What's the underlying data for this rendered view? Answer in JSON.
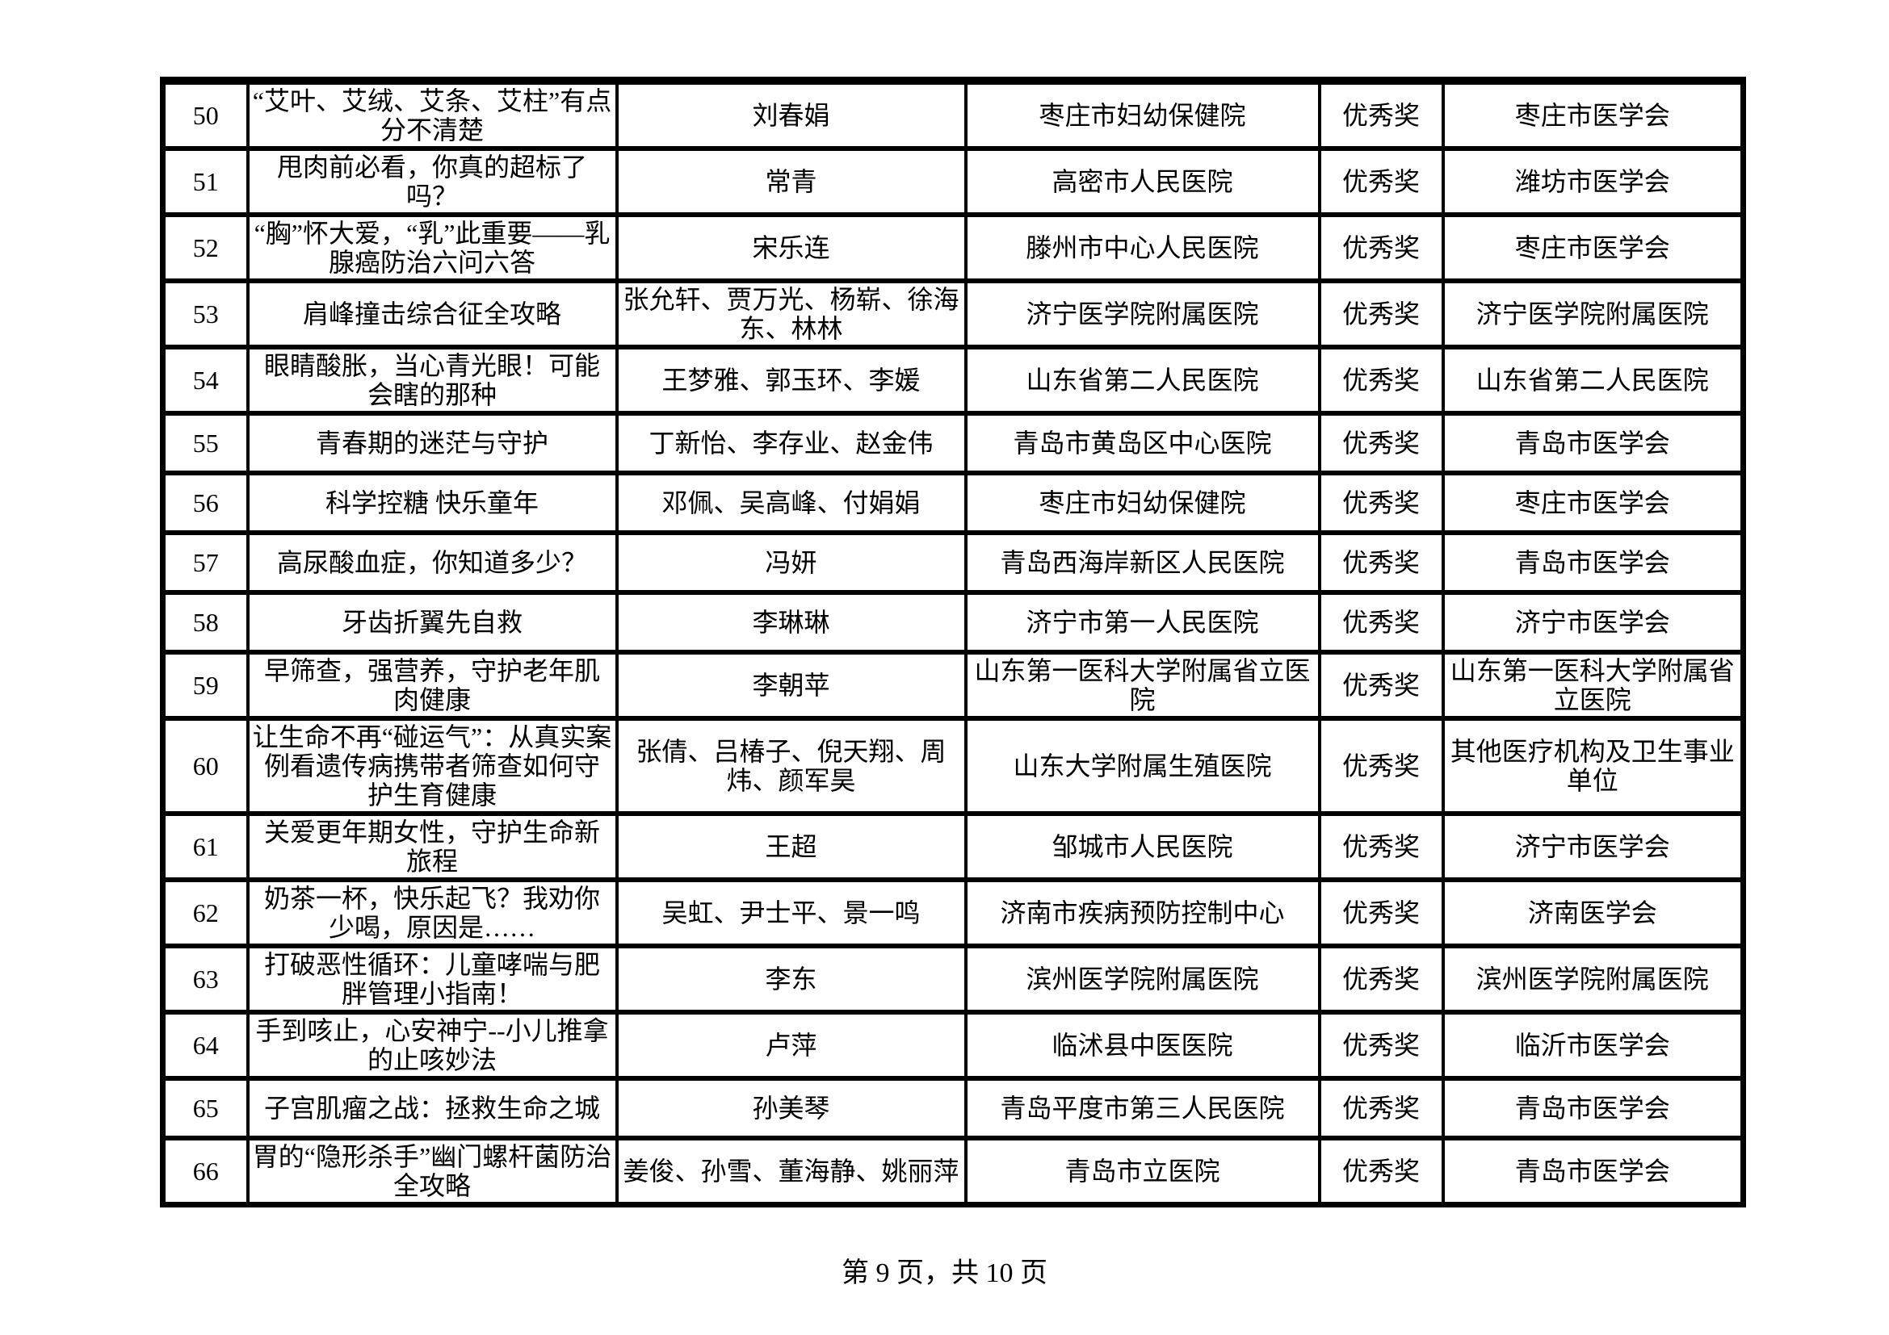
{
  "colors": {
    "background": "#ffffff",
    "border": "#000000",
    "text": "#000000"
  },
  "table": {
    "rows": [
      {
        "num": "50",
        "title": "“艾叶、艾绒、艾条、艾柱”有点分不清楚",
        "authors": "刘春娟",
        "org": "枣庄市妇幼保健院",
        "award": "优秀奖",
        "rec": "枣庄市医学会"
      },
      {
        "num": "51",
        "title": "甩肉前必看，你真的超标了吗？",
        "authors": "常青",
        "org": "高密市人民医院",
        "award": "优秀奖",
        "rec": "潍坊市医学会"
      },
      {
        "num": "52",
        "title": "“胸”怀大爱，“乳”此重要——乳腺癌防治六问六答",
        "authors": "宋乐连",
        "org": "滕州市中心人民医院",
        "award": "优秀奖",
        "rec": "枣庄市医学会"
      },
      {
        "num": "53",
        "title": "肩峰撞击综合征全攻略",
        "authors": "张允轩、贾万光、杨崭、徐海东、林林",
        "org": "济宁医学院附属医院",
        "award": "优秀奖",
        "rec": "济宁医学院附属医院"
      },
      {
        "num": "54",
        "title": "眼睛酸胀，当心青光眼！可能会瞎的那种",
        "authors": "王梦雅、郭玉环、李媛",
        "org": "山东省第二人民医院",
        "award": "优秀奖",
        "rec": "山东省第二人民医院"
      },
      {
        "num": "55",
        "title": "青春期的迷茫与守护",
        "authors": "丁新怡、李存业、赵金伟",
        "org": "青岛市黄岛区中心医院",
        "award": "优秀奖",
        "rec": "青岛市医学会"
      },
      {
        "num": "56",
        "title": "科学控糖 快乐童年",
        "authors": "邓佩、吴高峰、付娟娟",
        "org": "枣庄市妇幼保健院",
        "award": "优秀奖",
        "rec": "枣庄市医学会"
      },
      {
        "num": "57",
        "title": "高尿酸血症，你知道多少？",
        "authors": "冯妍",
        "org": "青岛西海岸新区人民医院",
        "award": "优秀奖",
        "rec": "青岛市医学会"
      },
      {
        "num": "58",
        "title": "牙齿折翼先自救",
        "authors": "李琳琳",
        "org": "济宁市第一人民医院",
        "award": "优秀奖",
        "rec": "济宁市医学会"
      },
      {
        "num": "59",
        "title": "早筛查，强营养，守护老年肌肉健康",
        "authors": "李朝苹",
        "org": "山东第一医科大学附属省立医院",
        "award": "优秀奖",
        "rec": "山东第一医科大学附属省立医院"
      },
      {
        "num": "60",
        "title": "让生命不再“碰运气”：从真实案例看遗传病携带者筛查如何守护生育健康",
        "authors": "张倩、吕椿子、倪天翔、周炜、颜军昊",
        "org": "山东大学附属生殖医院",
        "award": "优秀奖",
        "rec": "其他医疗机构及卫生事业单位"
      },
      {
        "num": "61",
        "title": "关爱更年期女性，守护生命新旅程",
        "authors": "王超",
        "org": "邹城市人民医院",
        "award": "优秀奖",
        "rec": "济宁市医学会"
      },
      {
        "num": "62",
        "title": "奶茶一杯，快乐起飞？我劝你少喝，原因是……",
        "authors": "吴虹、尹士平、景一鸣",
        "org": "济南市疾病预防控制中心",
        "award": "优秀奖",
        "rec": "济南医学会"
      },
      {
        "num": "63",
        "title": "打破恶性循环：儿童哮喘与肥胖管理小指南！",
        "authors": "李东",
        "org": "滨州医学院附属医院",
        "award": "优秀奖",
        "rec": "滨州医学院附属医院"
      },
      {
        "num": "64",
        "title": "手到咳止，心安神宁--小儿推拿的止咳妙法",
        "authors": "卢萍",
        "org": "临沭县中医医院",
        "award": "优秀奖",
        "rec": "临沂市医学会"
      },
      {
        "num": "65",
        "title": "子宫肌瘤之战：拯救生命之城",
        "authors": "孙美琴",
        "org": "青岛平度市第三人民医院",
        "award": "优秀奖",
        "rec": "青岛市医学会"
      },
      {
        "num": "66",
        "title": "胃的“隐形杀手”幽门螺杆菌防治全攻略",
        "authors": "姜俊、孙雪、董海静、姚丽萍",
        "org": "青岛市立医院",
        "award": "优秀奖",
        "rec": "青岛市医学会"
      }
    ]
  },
  "footer": {
    "text": "第 9 页，共 10 页"
  }
}
